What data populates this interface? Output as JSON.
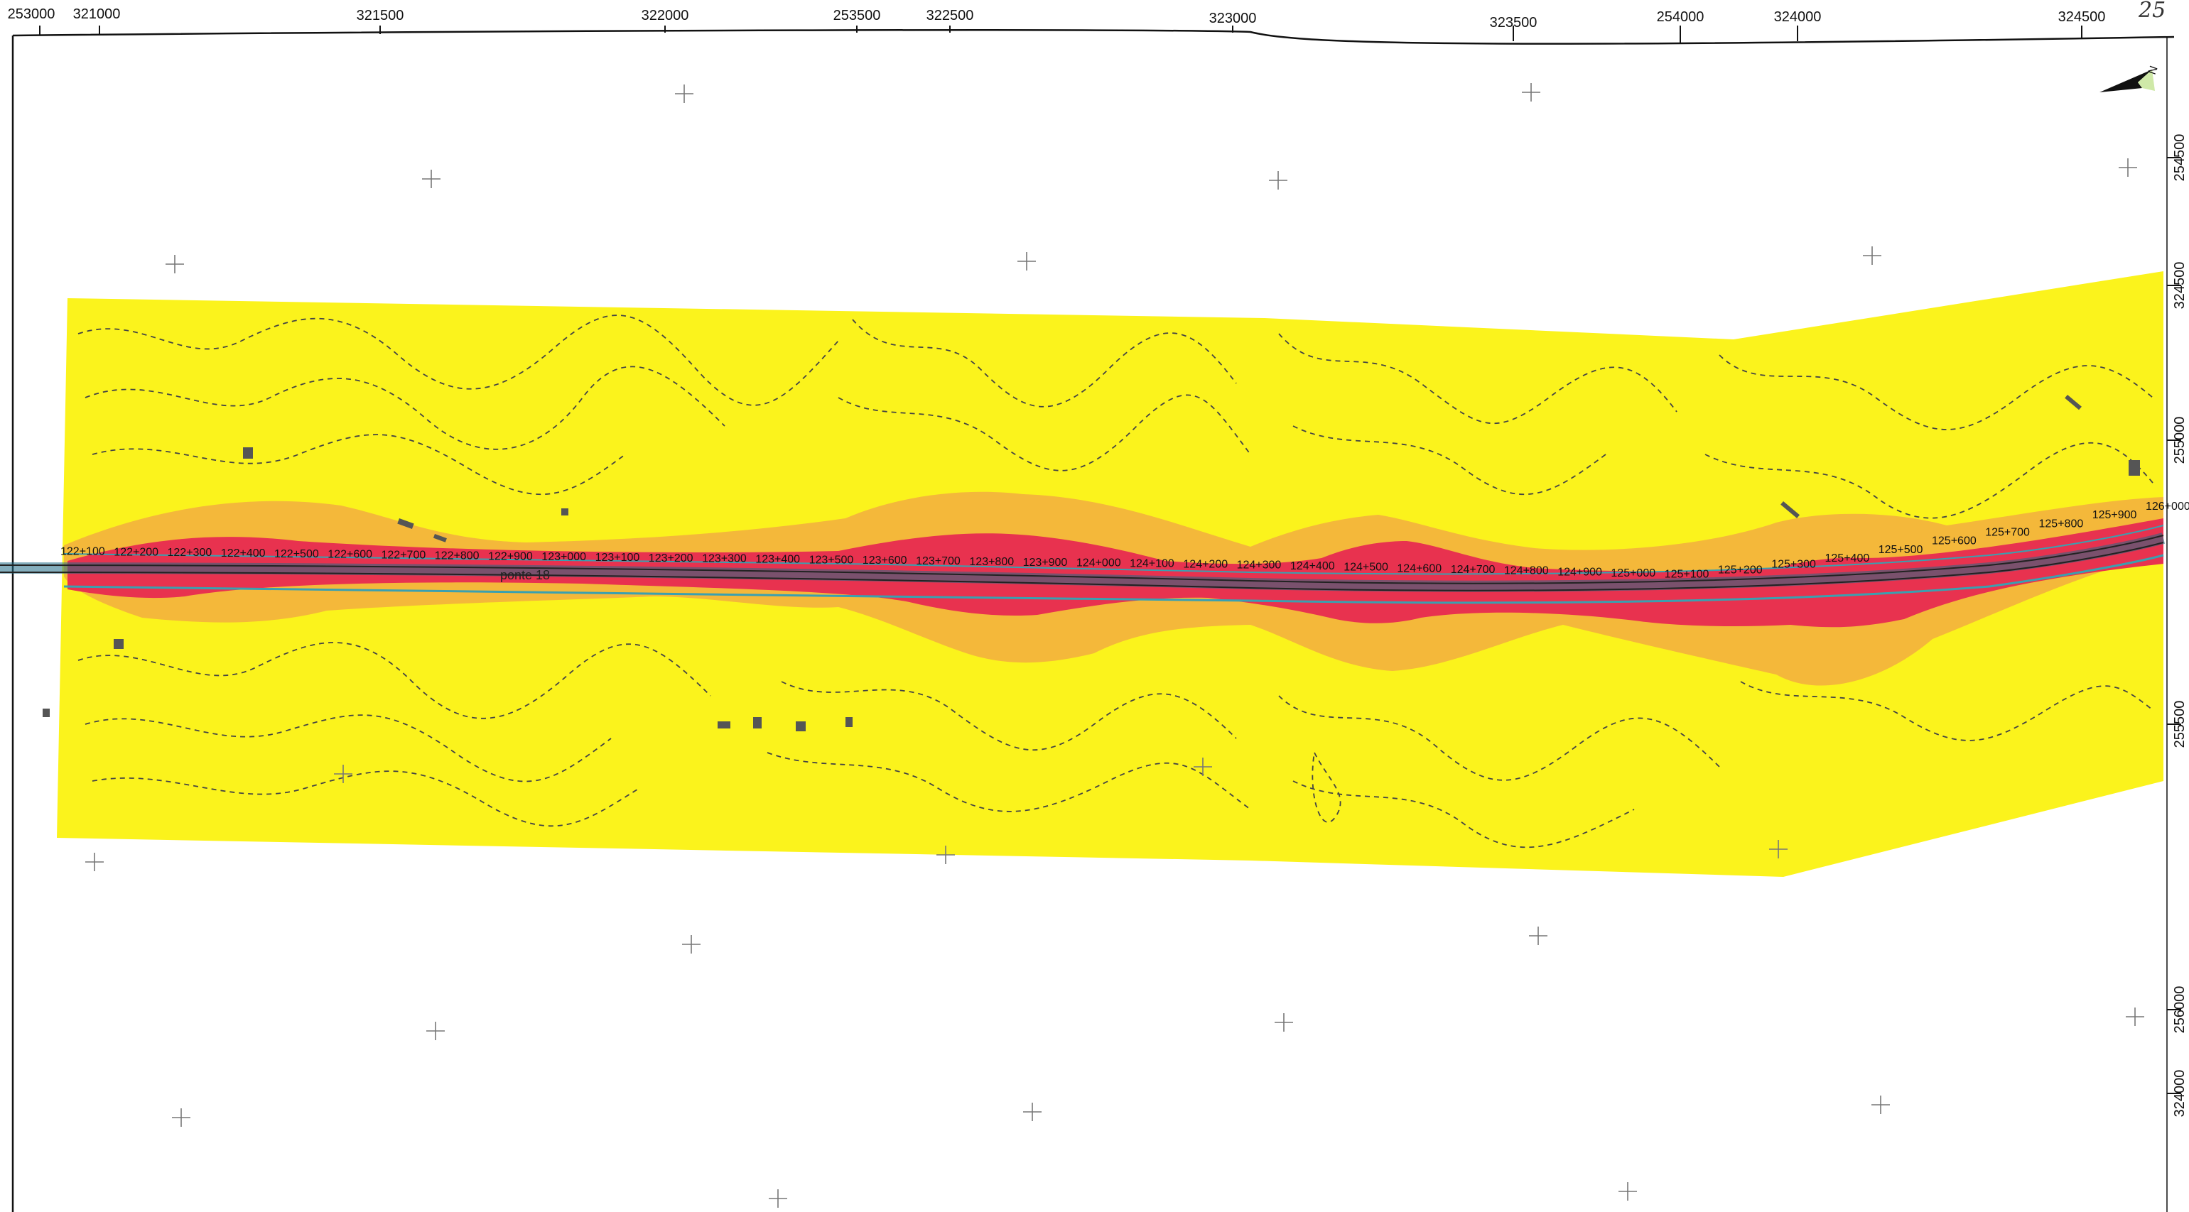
{
  "grid_top_labels": [
    "253000",
    "321000",
    "321500",
    "322000",
    "253500",
    "322500",
    "323000",
    "323500",
    "254000",
    "324000",
    "324500"
  ],
  "grid_right_labels": [
    "254500",
    "324500",
    "255000",
    "255500",
    "256000",
    "324000"
  ],
  "corner_mark": "25",
  "north_arrow": {
    "icon": "north-arrow-icon",
    "label": "N"
  },
  "chainages": [
    "122+100",
    "122+200",
    "122+300",
    "122+400",
    "122+500",
    "122+600",
    "122+700",
    "122+800",
    "122+900",
    "123+000",
    "123+100",
    "123+200",
    "123+300",
    "123+400",
    "123+500",
    "123+600",
    "123+700",
    "123+800",
    "123+900",
    "124+000",
    "124+100",
    "124+200",
    "124+300",
    "124+400",
    "124+500",
    "124+600",
    "124+700",
    "124+800",
    "124+900",
    "125+000",
    "125+100",
    "125+200",
    "125+300",
    "125+400",
    "125+500",
    "125+600",
    "125+700",
    "125+800",
    "125+900",
    "126+000"
  ],
  "place_label": "ponte 18",
  "colors": {
    "buffer_outer": "#fbf31c",
    "buffer_middle": "#f4b83a",
    "buffer_inner": "#e8324f",
    "road_track": "#1f6b86",
    "background": "#ffffff"
  }
}
